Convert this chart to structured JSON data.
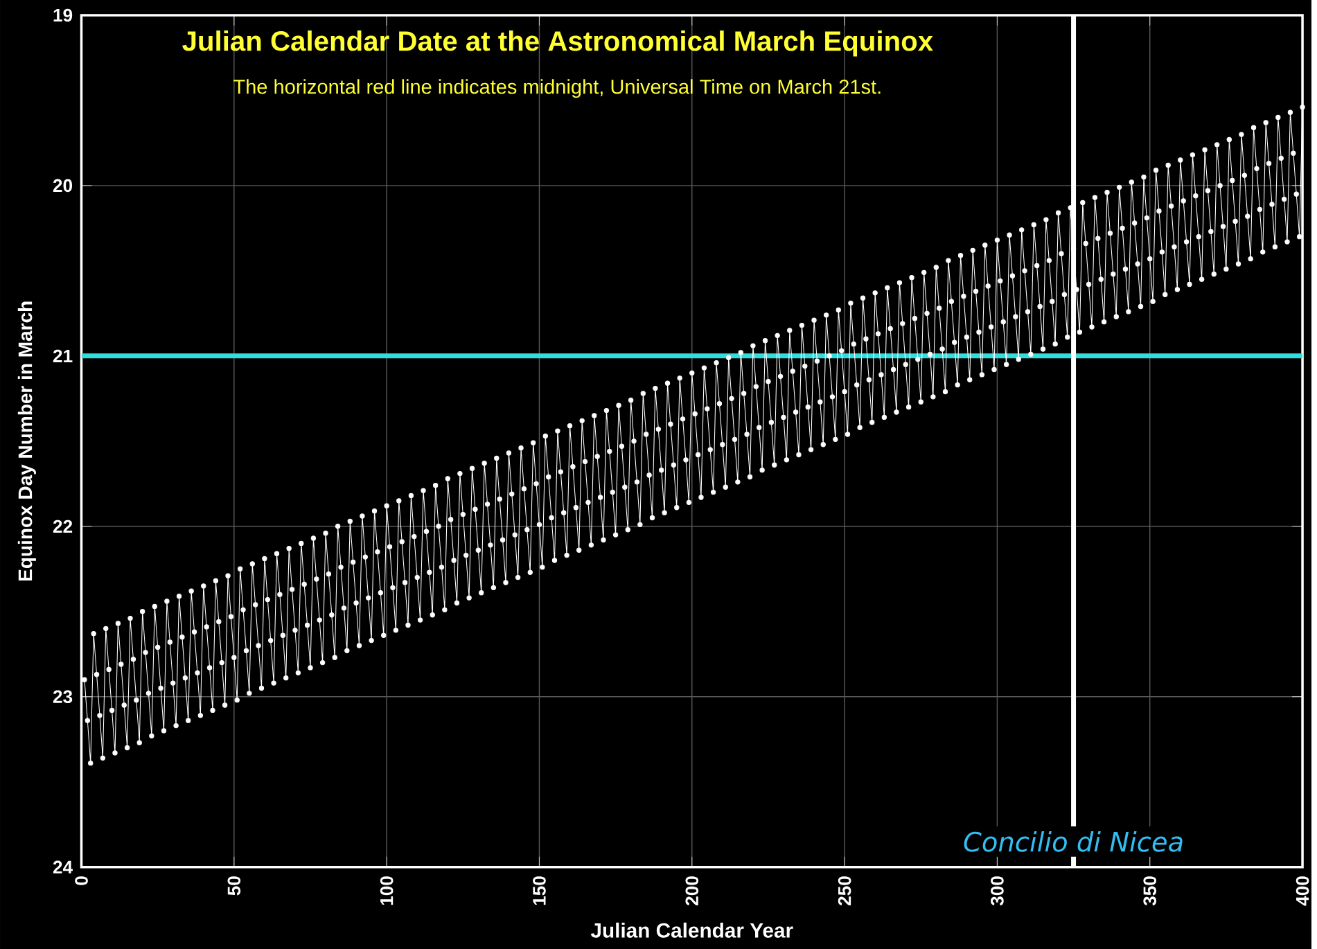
{
  "chart_data": {
    "type": "line",
    "title": "Julian Calendar Date at the Astronomical March Equinox",
    "subtitle": "The horizontal red line indicates midnight, Universal Time on March 21st.",
    "xlabel": "Julian Calendar Year",
    "ylabel": "Equinox Day Number in March",
    "x": [
      1,
      2,
      3,
      4,
      5,
      6,
      7,
      8,
      9,
      10,
      11,
      12,
      13,
      14,
      15,
      16,
      17,
      18,
      19,
      20,
      21,
      22,
      23,
      24,
      25,
      26,
      27,
      28,
      29,
      30,
      31,
      32,
      33,
      34,
      35,
      36,
      37,
      38,
      39,
      40,
      41,
      42,
      43,
      44,
      45,
      46,
      47,
      48,
      49,
      50,
      51,
      52,
      53,
      54,
      55,
      56,
      57,
      58,
      59,
      60,
      61,
      62,
      63,
      64,
      65,
      66,
      67,
      68,
      69,
      70,
      71,
      72,
      73,
      74,
      75,
      76,
      77,
      78,
      79,
      80,
      81,
      82,
      83,
      84,
      85,
      86,
      87,
      88,
      89,
      90,
      91,
      92,
      93,
      94,
      95,
      96,
      97,
      98,
      99,
      100,
      101,
      102,
      103,
      104,
      105,
      106,
      107,
      108,
      109,
      110,
      111,
      112,
      113,
      114,
      115,
      116,
      117,
      118,
      119,
      120,
      121,
      122,
      123,
      124,
      125,
      126,
      127,
      128,
      129,
      130,
      131,
      132,
      133,
      134,
      135,
      136,
      137,
      138,
      139,
      140,
      141,
      142,
      143,
      144,
      145,
      146,
      147,
      148,
      149,
      150,
      151,
      152,
      153,
      154,
      155,
      156,
      157,
      158,
      159,
      160,
      161,
      162,
      163,
      164,
      165,
      166,
      167,
      168,
      169,
      170,
      171,
      172,
      173,
      174,
      175,
      176,
      177,
      178,
      179,
      180,
      181,
      182,
      183,
      184,
      185,
      186,
      187,
      188,
      189,
      190,
      191,
      192,
      193,
      194,
      195,
      196,
      197,
      198,
      199,
      200,
      201,
      202,
      203,
      204,
      205,
      206,
      207,
      208,
      209,
      210,
      211,
      212,
      213,
      214,
      215,
      216,
      217,
      218,
      219,
      220,
      221,
      222,
      223,
      224,
      225,
      226,
      227,
      228,
      229,
      230,
      231,
      232,
      233,
      234,
      235,
      236,
      237,
      238,
      239,
      240,
      241,
      242,
      243,
      244,
      245,
      246,
      247,
      248,
      249,
      250,
      251,
      252,
      253,
      254,
      255,
      256,
      257,
      258,
      259,
      260,
      261,
      262,
      263,
      264,
      265,
      266,
      267,
      268,
      269,
      270,
      271,
      272,
      273,
      274,
      275,
      276,
      277,
      278,
      279,
      280,
      281,
      282,
      283,
      284,
      285,
      286,
      287,
      288,
      289,
      290,
      291,
      292,
      293,
      294,
      295,
      296,
      297,
      298,
      299,
      300,
      301,
      302,
      303,
      304,
      305,
      306,
      307,
      308,
      309,
      310,
      311,
      312,
      313,
      314,
      315,
      316,
      317,
      318,
      319,
      320,
      321,
      322,
      323,
      324,
      325,
      326,
      327,
      328,
      329,
      330,
      331,
      332,
      333,
      334,
      335,
      336,
      337,
      338,
      339,
      340,
      341,
      342,
      343,
      344,
      345,
      346,
      347,
      348,
      349,
      350,
      351,
      352,
      353,
      354,
      355,
      356,
      357,
      358,
      359,
      360,
      361,
      362,
      363,
      364,
      365,
      366,
      367,
      368,
      369,
      370,
      371,
      372,
      373,
      374,
      375,
      376,
      377,
      378,
      379,
      380,
      381,
      382,
      383,
      384,
      385,
      386,
      387,
      388,
      389,
      390,
      391,
      392,
      393,
      394,
      395,
      396,
      397,
      398,
      399,
      400
    ],
    "series": [
      {
        "color": "#ffffff",
        "values": [
          22.9,
          23.14,
          23.39,
          22.63,
          22.87,
          23.11,
          23.36,
          22.6,
          22.84,
          23.08,
          23.33,
          22.57,
          22.81,
          23.05,
          23.3,
          22.54,
          22.78,
          23.02,
          23.27,
          22.5,
          22.74,
          22.98,
          23.23,
          22.47,
          22.71,
          22.95,
          23.2,
          22.44,
          22.68,
          22.92,
          23.17,
          22.41,
          22.65,
          22.89,
          23.14,
          22.38,
          22.62,
          22.86,
          23.11,
          22.35,
          22.59,
          22.83,
          23.08,
          22.32,
          22.56,
          22.8,
          23.05,
          22.29,
          22.53,
          22.77,
          23.02,
          22.25,
          22.49,
          22.73,
          22.98,
          22.22,
          22.46,
          22.7,
          22.95,
          22.19,
          22.43,
          22.67,
          22.92,
          22.16,
          22.4,
          22.64,
          22.89,
          22.13,
          22.37,
          22.61,
          22.86,
          22.1,
          22.34,
          22.58,
          22.83,
          22.07,
          22.31,
          22.55,
          22.8,
          22.04,
          22.28,
          22.52,
          22.77,
          22.0,
          22.24,
          22.48,
          22.73,
          21.97,
          22.21,
          22.45,
          22.7,
          21.94,
          22.18,
          22.42,
          22.67,
          21.91,
          22.15,
          22.39,
          22.64,
          21.88,
          22.12,
          22.36,
          22.61,
          21.85,
          22.09,
          22.33,
          22.58,
          21.82,
          22.06,
          22.3,
          22.55,
          21.79,
          22.03,
          22.27,
          22.52,
          21.76,
          22.0,
          22.24,
          22.49,
          21.72,
          21.96,
          22.2,
          22.45,
          21.69,
          21.93,
          22.17,
          22.42,
          21.66,
          21.9,
          22.14,
          22.39,
          21.63,
          21.87,
          22.11,
          22.36,
          21.6,
          21.84,
          22.08,
          22.33,
          21.57,
          21.81,
          22.05,
          22.3,
          21.54,
          21.78,
          22.02,
          22.27,
          21.51,
          21.75,
          21.99,
          22.24,
          21.47,
          21.71,
          21.95,
          22.2,
          21.44,
          21.68,
          21.92,
          22.17,
          21.41,
          21.65,
          21.89,
          22.14,
          21.38,
          21.62,
          21.86,
          22.11,
          21.35,
          21.59,
          21.83,
          22.08,
          21.32,
          21.56,
          21.8,
          22.05,
          21.29,
          21.53,
          21.77,
          22.02,
          21.26,
          21.5,
          21.74,
          21.99,
          21.22,
          21.46,
          21.7,
          21.95,
          21.19,
          21.43,
          21.67,
          21.92,
          21.16,
          21.4,
          21.64,
          21.89,
          21.13,
          21.37,
          21.61,
          21.86,
          21.1,
          21.34,
          21.58,
          21.83,
          21.07,
          21.31,
          21.55,
          21.8,
          21.04,
          21.28,
          21.52,
          21.77,
          21.01,
          21.25,
          21.49,
          21.74,
          20.98,
          21.22,
          21.46,
          21.71,
          20.94,
          21.18,
          21.42,
          21.67,
          20.91,
          21.15,
          21.39,
          21.64,
          20.88,
          21.12,
          21.36,
          21.61,
          20.85,
          21.09,
          21.33,
          21.58,
          20.82,
          21.06,
          21.3,
          21.55,
          20.79,
          21.03,
          21.27,
          21.52,
          20.76,
          21.0,
          21.24,
          21.49,
          20.73,
          20.97,
          21.21,
          21.46,
          20.69,
          20.93,
          21.17,
          21.42,
          20.66,
          20.9,
          21.14,
          21.39,
          20.63,
          20.87,
          21.11,
          21.36,
          20.6,
          20.84,
          21.08,
          21.33,
          20.57,
          20.81,
          21.05,
          21.3,
          20.54,
          20.78,
          21.02,
          21.27,
          20.51,
          20.75,
          20.99,
          21.24,
          20.48,
          20.72,
          20.96,
          21.21,
          20.44,
          20.68,
          20.92,
          21.17,
          20.41,
          20.65,
          20.89,
          21.14,
          20.38,
          20.62,
          20.86,
          21.11,
          20.35,
          20.59,
          20.83,
          21.08,
          20.32,
          20.56,
          20.8,
          21.05,
          20.29,
          20.53,
          20.77,
          21.02,
          20.26,
          20.5,
          20.74,
          20.99,
          20.23,
          20.47,
          20.71,
          20.96,
          20.2,
          20.44,
          20.68,
          20.93,
          20.16,
          20.4,
          20.64,
          20.89,
          20.13,
          20.37,
          20.61,
          20.86,
          20.1,
          20.34,
          20.58,
          20.83,
          20.07,
          20.31,
          20.55,
          20.8,
          20.04,
          20.28,
          20.52,
          20.77,
          20.01,
          20.25,
          20.49,
          20.74,
          19.98,
          20.22,
          20.46,
          20.71,
          19.95,
          20.19,
          20.43,
          20.68,
          19.91,
          20.15,
          20.39,
          20.64,
          19.88,
          20.12,
          20.36,
          20.61,
          19.85,
          20.09,
          20.33,
          20.58,
          19.82,
          20.06,
          20.3,
          20.55,
          19.79,
          20.03,
          20.27,
          20.52,
          19.76,
          20.0,
          20.24,
          20.49,
          19.73,
          19.97,
          20.21,
          20.46,
          19.7,
          19.94,
          20.18,
          20.43,
          19.66,
          19.9,
          20.14,
          20.39,
          19.63,
          19.87,
          20.11,
          20.36,
          19.6,
          19.84,
          20.08,
          20.33,
          19.57,
          19.81,
          20.05,
          20.3,
          19.54
        ]
      }
    ],
    "xlim": [
      0,
      400
    ],
    "xticks": [
      0,
      50,
      100,
      150,
      200,
      250,
      300,
      350,
      400
    ],
    "ylim": [
      24,
      19
    ],
    "yticks": [
      19,
      20,
      21,
      22,
      23,
      24
    ],
    "ref_lines": [
      {
        "axis": "y",
        "value": 21,
        "color": "#33dddd"
      },
      {
        "axis": "x",
        "value": 325,
        "label": "Concilio di Nicea",
        "color": "#ffffff"
      }
    ],
    "grid": true,
    "marker": "circle",
    "line_style": "solid"
  }
}
